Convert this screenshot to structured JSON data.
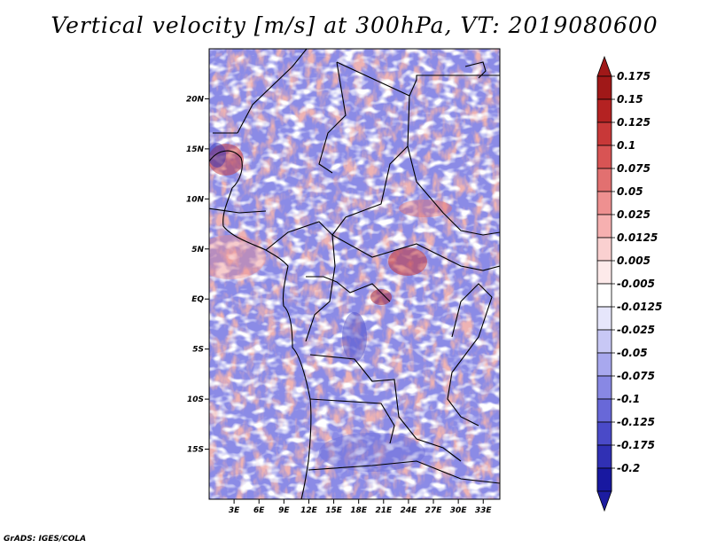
{
  "title": "Vertical velocity [m/s] at 300hPa, VT: 2019080600",
  "credit": "GrADS: IGES/COLA",
  "map": {
    "lon_range": [
      0,
      35
    ],
    "lat_range": [
      -20,
      25
    ],
    "lat_ticks": [
      {
        "value": 20,
        "label": "20N"
      },
      {
        "value": 15,
        "label": "15N"
      },
      {
        "value": 10,
        "label": "10N"
      },
      {
        "value": 5,
        "label": "5N"
      },
      {
        "value": 0,
        "label": "EQ"
      },
      {
        "value": -5,
        "label": "5S"
      },
      {
        "value": -10,
        "label": "10S"
      },
      {
        "value": -15,
        "label": "15S"
      }
    ],
    "lon_ticks": [
      {
        "value": 3,
        "label": "3E"
      },
      {
        "value": 6,
        "label": "6E"
      },
      {
        "value": 9,
        "label": "9E"
      },
      {
        "value": 12,
        "label": "12E"
      },
      {
        "value": 15,
        "label": "15E"
      },
      {
        "value": 18,
        "label": "18E"
      },
      {
        "value": 21,
        "label": "21E"
      },
      {
        "value": 24,
        "label": "24E"
      },
      {
        "value": 27,
        "label": "27E"
      },
      {
        "value": 30,
        "label": "30E"
      },
      {
        "value": 33,
        "label": "33E"
      }
    ]
  },
  "colorbar": {
    "levels": [
      {
        "label": "0.175",
        "color": "#a01818"
      },
      {
        "label": "0.15",
        "color": "#b42222"
      },
      {
        "label": "0.125",
        "color": "#c83838"
      },
      {
        "label": "0.1",
        "color": "#d85454"
      },
      {
        "label": "0.075",
        "color": "#e27070"
      },
      {
        "label": "0.05",
        "color": "#ee9090"
      },
      {
        "label": "0.025",
        "color": "#f6b0b0"
      },
      {
        "label": "0.0125",
        "color": "#fad0d0"
      },
      {
        "label": "0.005",
        "color": "#fdeaea"
      },
      {
        "label": "-0.005",
        "color": "#ffffff"
      },
      {
        "label": "-0.0125",
        "color": "#e6e6fb"
      },
      {
        "label": "-0.025",
        "color": "#c8c8f5"
      },
      {
        "label": "-0.05",
        "color": "#a8a8ee"
      },
      {
        "label": "-0.075",
        "color": "#8888e4"
      },
      {
        "label": "-0.1",
        "color": "#6868d8"
      },
      {
        "label": "-0.125",
        "color": "#4a4ac8"
      },
      {
        "label": "-0.175",
        "color": "#3030b4"
      },
      {
        "label": "-0.2",
        "color": "#1c1ca0"
      }
    ],
    "top_overflow_color": "#a01818",
    "bottom_overflow_color": "#1c1ca0",
    "bottom_fill_color": "#1818a0"
  }
}
